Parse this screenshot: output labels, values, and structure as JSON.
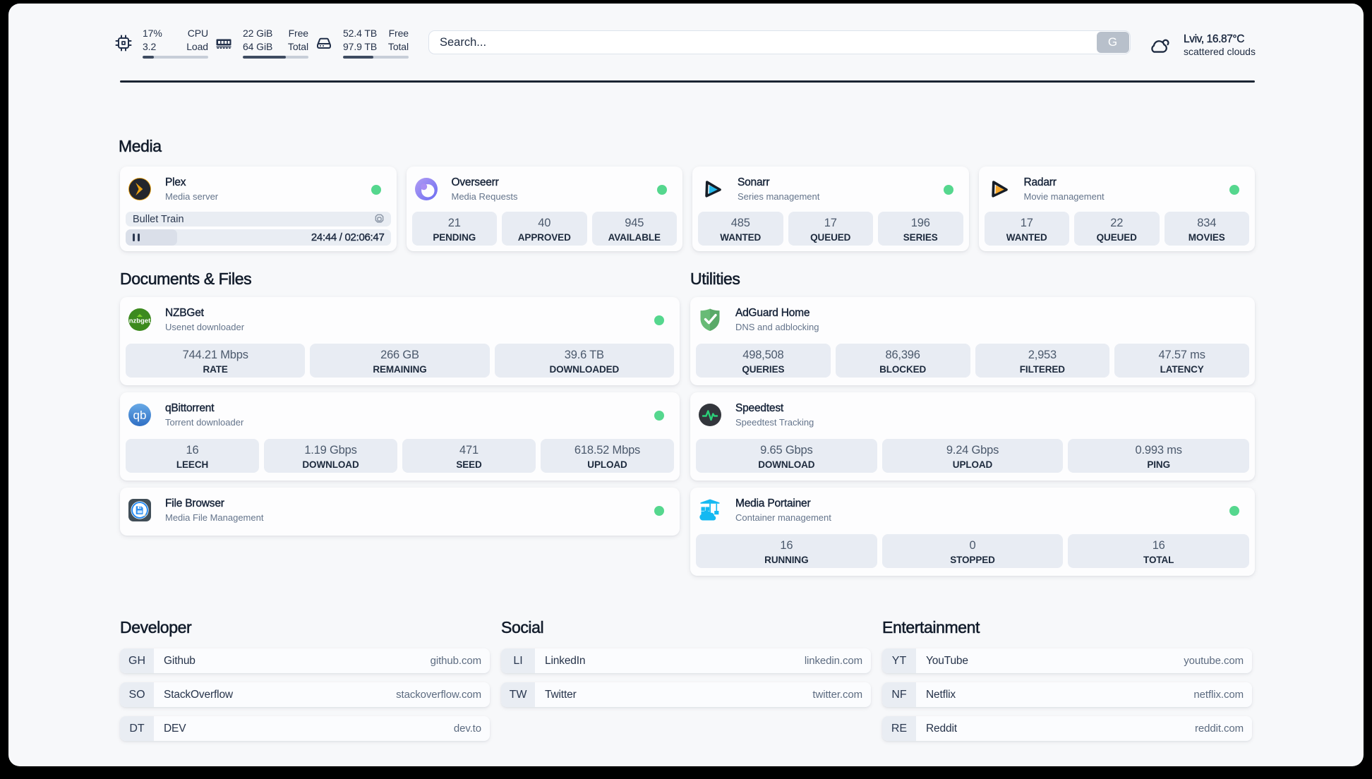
{
  "colors": {
    "outer_background": "#000000",
    "surface": "#f7f8fa",
    "card": "#fdfdfe",
    "stat_block": "#e8ecf3",
    "title_text": "#18253a",
    "subtitle_text": "#64748b",
    "status_online": "#55d78e",
    "accent_bar_fill": "#3e4c61"
  },
  "header": {
    "resources": [
      {
        "icon": "cpu-icon",
        "top_left": "17%",
        "top_right": "CPU",
        "bottom_left": "3.2",
        "bottom_right": "Load",
        "percent": 17
      },
      {
        "icon": "memory-icon",
        "top_left": "22 GiB",
        "top_right": "Free",
        "bottom_left": "64 GiB",
        "bottom_right": "Total",
        "percent": 66
      },
      {
        "icon": "disk-icon",
        "top_left": "52.4 TB",
        "top_right": "Free",
        "bottom_left": "97.9 TB",
        "bottom_right": "Total",
        "percent": 46
      }
    ],
    "search": {
      "placeholder": "Search...",
      "button_label": "G"
    },
    "weather": {
      "icon": "cloud-icon",
      "location_temp": "Lviv, 16.87°C",
      "condition": "scattered clouds"
    }
  },
  "media": {
    "title": "Media",
    "plex": {
      "title": "Plex",
      "subtitle": "Media server",
      "online": true,
      "now_playing": "Bullet Train",
      "time": "24:44 / 02:06:47",
      "progress_percent": 19.5
    },
    "overseerr": {
      "title": "Overseerr",
      "subtitle": "Media Requests",
      "online": true,
      "stats": [
        {
          "value": "21",
          "label": "PENDING"
        },
        {
          "value": "40",
          "label": "APPROVED"
        },
        {
          "value": "945",
          "label": "AVAILABLE"
        }
      ]
    },
    "sonarr": {
      "title": "Sonarr",
      "subtitle": "Series management",
      "online": true,
      "stats": [
        {
          "value": "485",
          "label": "WANTED"
        },
        {
          "value": "17",
          "label": "QUEUED"
        },
        {
          "value": "196",
          "label": "SERIES"
        }
      ]
    },
    "radarr": {
      "title": "Radarr",
      "subtitle": "Movie management",
      "online": true,
      "stats": [
        {
          "value": "17",
          "label": "WANTED"
        },
        {
          "value": "22",
          "label": "QUEUED"
        },
        {
          "value": "834",
          "label": "MOVIES"
        }
      ]
    }
  },
  "documents": {
    "title": "Documents & Files",
    "nzbget": {
      "title": "NZBGet",
      "subtitle": "Usenet downloader",
      "online": true,
      "stats": [
        {
          "value": "744.21 Mbps",
          "label": "RATE"
        },
        {
          "value": "266 GB",
          "label": "REMAINING"
        },
        {
          "value": "39.6 TB",
          "label": "DOWNLOADED"
        }
      ]
    },
    "qbittorrent": {
      "title": "qBittorrent",
      "subtitle": "Torrent downloader",
      "online": true,
      "stats": [
        {
          "value": "16",
          "label": "LEECH"
        },
        {
          "value": "1.19 Gbps",
          "label": "DOWNLOAD"
        },
        {
          "value": "471",
          "label": "SEED"
        },
        {
          "value": "618.52 Mbps",
          "label": "UPLOAD"
        }
      ]
    },
    "filebrowser": {
      "title": "File Browser",
      "subtitle": "Media File Management",
      "online": true
    }
  },
  "utilities": {
    "title": "Utilities",
    "adguard": {
      "title": "AdGuard Home",
      "subtitle": "DNS and adblocking",
      "online": false,
      "stats": [
        {
          "value": "498,508",
          "label": "QUERIES"
        },
        {
          "value": "86,396",
          "label": "BLOCKED"
        },
        {
          "value": "2,953",
          "label": "FILTERED"
        },
        {
          "value": "47.57 ms",
          "label": "LATENCY"
        }
      ]
    },
    "speedtest": {
      "title": "Speedtest",
      "subtitle": "Speedtest Tracking",
      "online": false,
      "stats": [
        {
          "value": "9.65 Gbps",
          "label": "DOWNLOAD"
        },
        {
          "value": "9.24 Gbps",
          "label": "UPLOAD"
        },
        {
          "value": "0.993 ms",
          "label": "PING"
        }
      ]
    },
    "portainer": {
      "title": "Media Portainer",
      "subtitle": "Container management",
      "online": true,
      "stats": [
        {
          "value": "16",
          "label": "RUNNING"
        },
        {
          "value": "0",
          "label": "STOPPED"
        },
        {
          "value": "16",
          "label": "TOTAL"
        }
      ]
    }
  },
  "bookmarks": {
    "developer": {
      "title": "Developer",
      "items": [
        {
          "abbr": "GH",
          "name": "Github",
          "url": "github.com"
        },
        {
          "abbr": "SO",
          "name": "StackOverflow",
          "url": "stackoverflow.com"
        },
        {
          "abbr": "DT",
          "name": "DEV",
          "url": "dev.to"
        }
      ]
    },
    "social": {
      "title": "Social",
      "items": [
        {
          "abbr": "LI",
          "name": "LinkedIn",
          "url": "linkedin.com"
        },
        {
          "abbr": "TW",
          "name": "Twitter",
          "url": "twitter.com"
        }
      ]
    },
    "entertainment": {
      "title": "Entertainment",
      "items": [
        {
          "abbr": "YT",
          "name": "YouTube",
          "url": "youtube.com"
        },
        {
          "abbr": "NF",
          "name": "Netflix",
          "url": "netflix.com"
        },
        {
          "abbr": "RE",
          "name": "Reddit",
          "url": "reddit.com"
        }
      ]
    }
  }
}
